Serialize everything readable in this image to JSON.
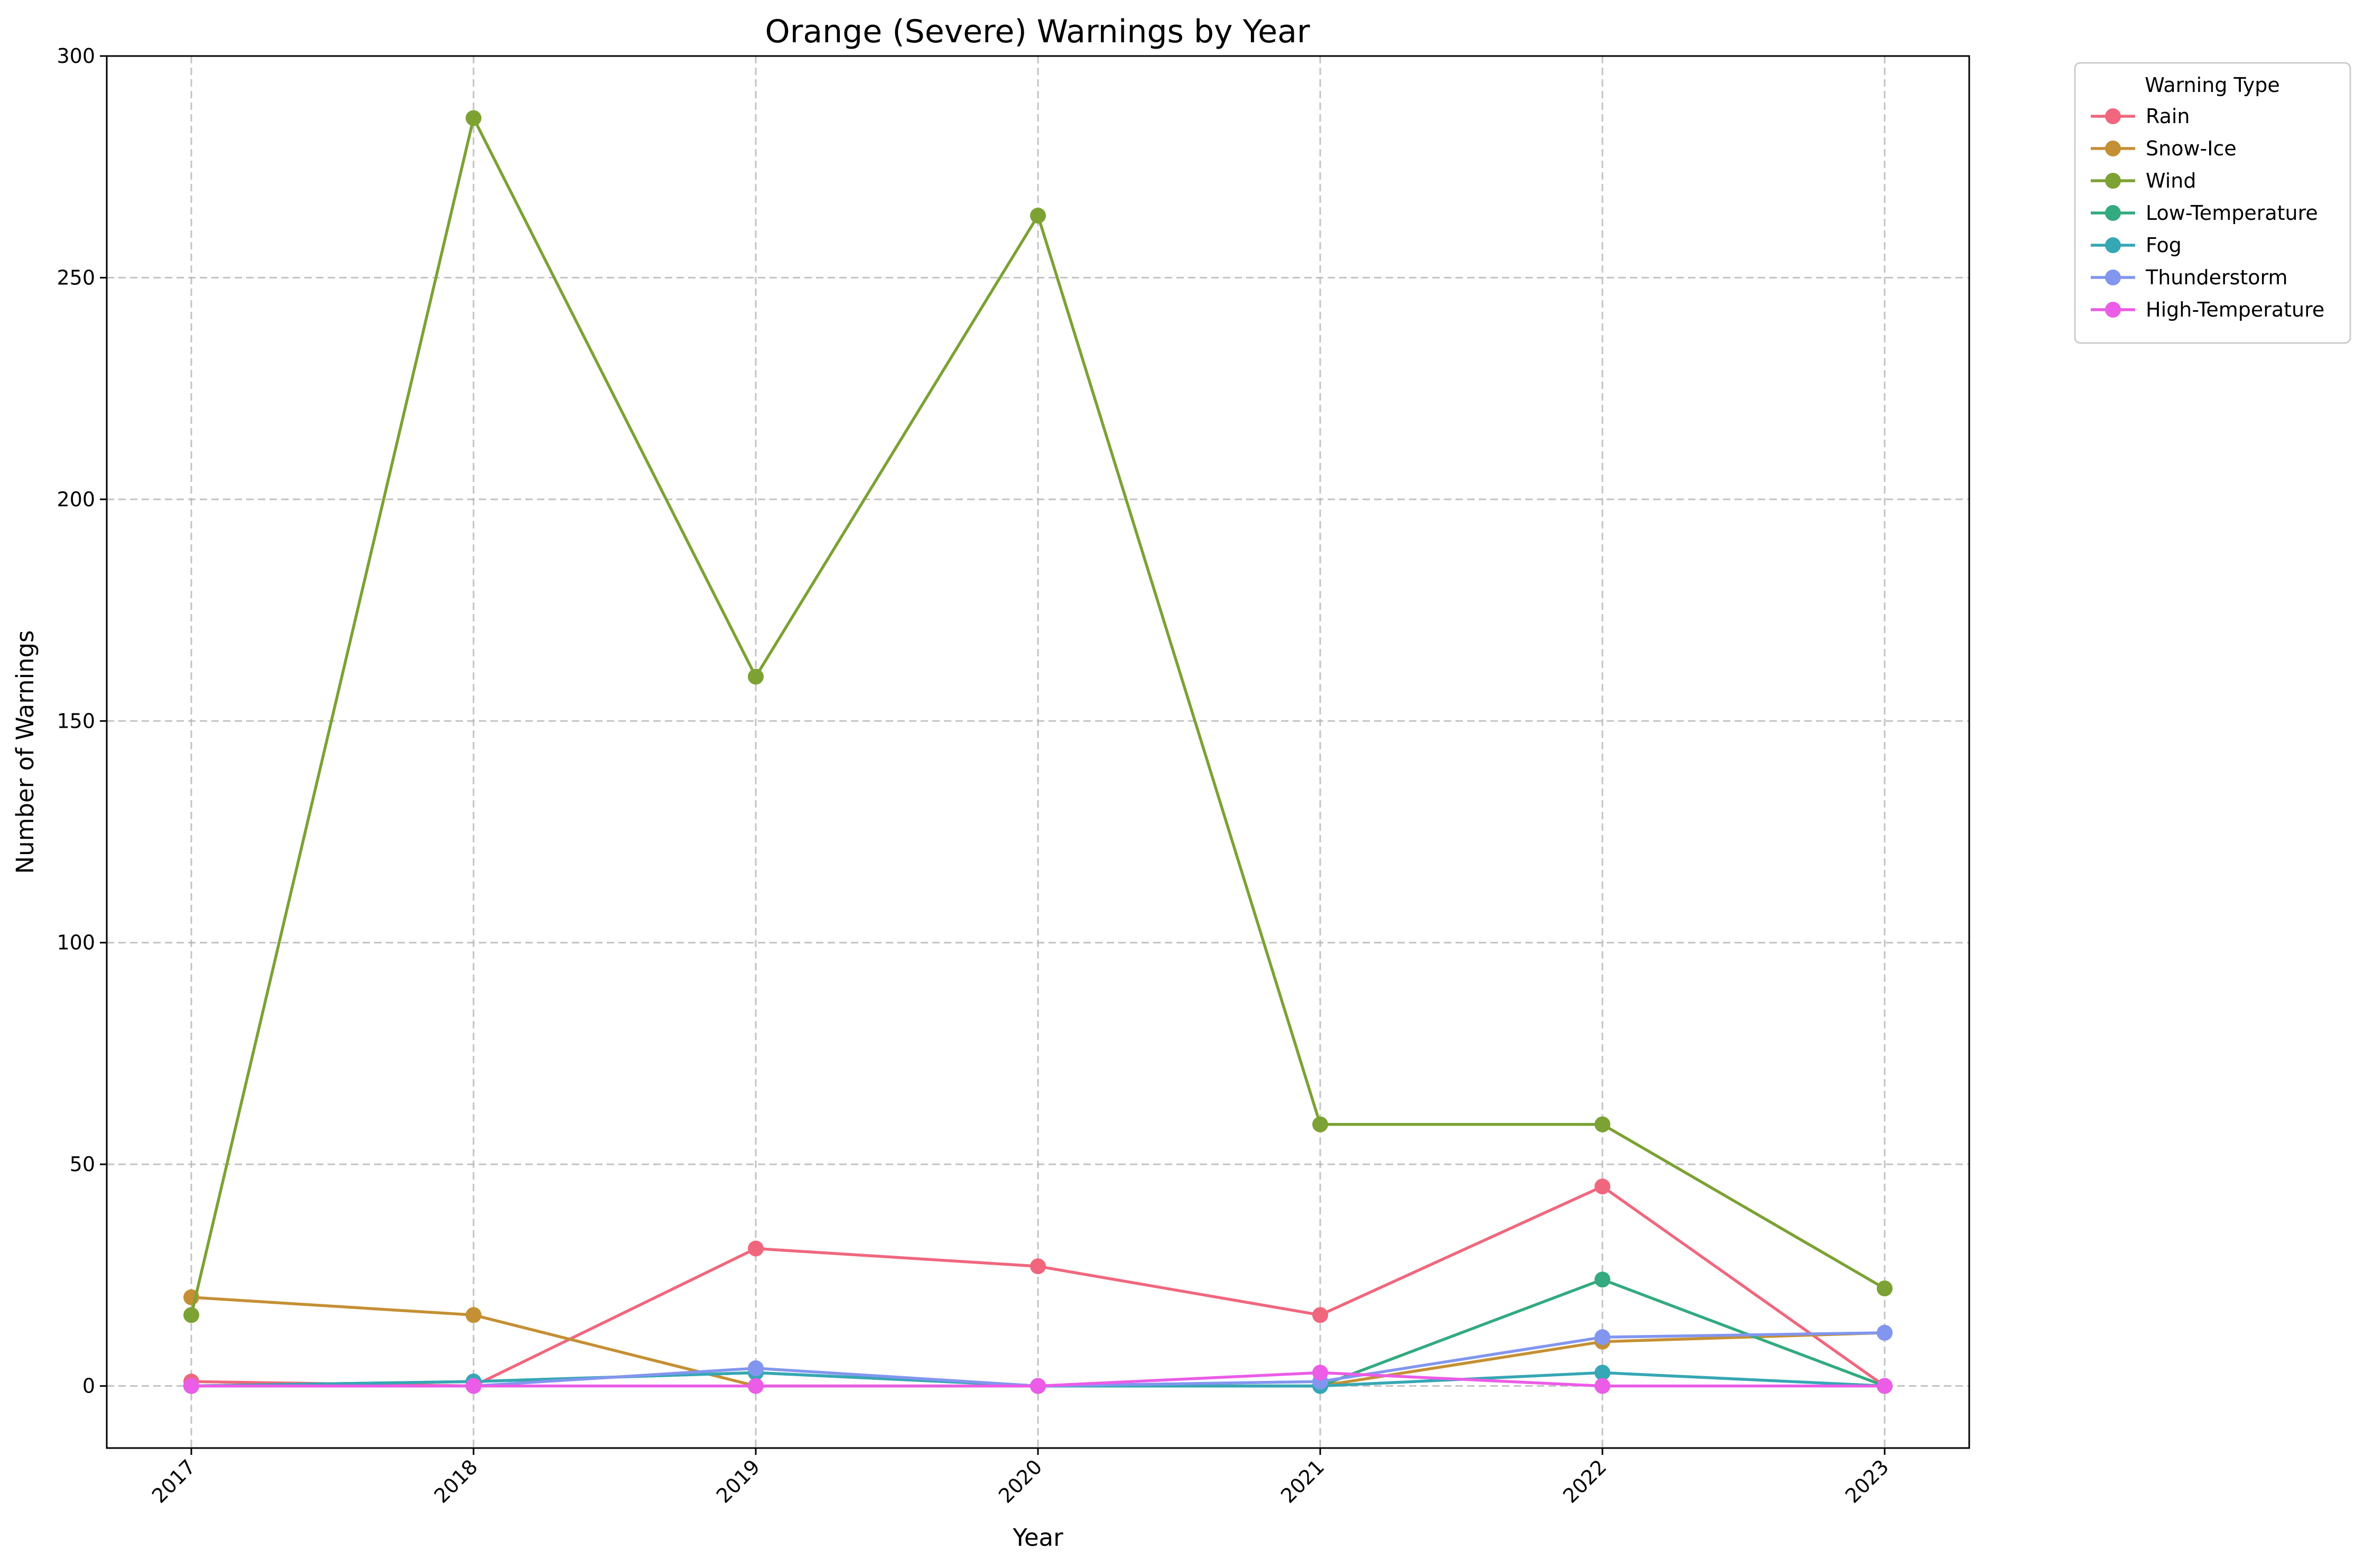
{
  "chart_data": {
    "type": "line",
    "title": "Orange (Severe) Warnings by Year",
    "xlabel": "Year",
    "ylabel": "Number of Warnings",
    "x": [
      "2017",
      "2018",
      "2019",
      "2020",
      "2021",
      "2022",
      "2023"
    ],
    "ylim": [
      -14,
      300
    ],
    "yticks": [
      0,
      50,
      100,
      150,
      200,
      250,
      300
    ],
    "grid": true,
    "legend": {
      "title": "Warning Type",
      "placement": "outside-top-right"
    },
    "series": [
      {
        "name": "Rain",
        "color": "#f0677d",
        "values": [
          1,
          0,
          31,
          27,
          16,
          45,
          0
        ]
      },
      {
        "name": "Snow-Ice",
        "color": "#c58f33",
        "values": [
          20,
          16,
          0,
          0,
          0,
          10,
          12
        ]
      },
      {
        "name": "Wind",
        "color": "#7ba233",
        "values": [
          16,
          286,
          160,
          264,
          59,
          59,
          22
        ]
      },
      {
        "name": "Low-Temperature",
        "color": "#33aa7f",
        "values": [
          0,
          1,
          3,
          0,
          0,
          24,
          0
        ]
      },
      {
        "name": "Fog",
        "color": "#36a7b4",
        "values": [
          0,
          1,
          3,
          0,
          0,
          3,
          0
        ]
      },
      {
        "name": "Thunderstorm",
        "color": "#8296ef",
        "values": [
          0,
          0,
          4,
          0,
          1,
          11,
          12
        ]
      },
      {
        "name": "High-Temperature",
        "color": "#eb5ce7",
        "values": [
          0,
          0,
          0,
          0,
          3,
          0,
          0
        ]
      }
    ]
  }
}
